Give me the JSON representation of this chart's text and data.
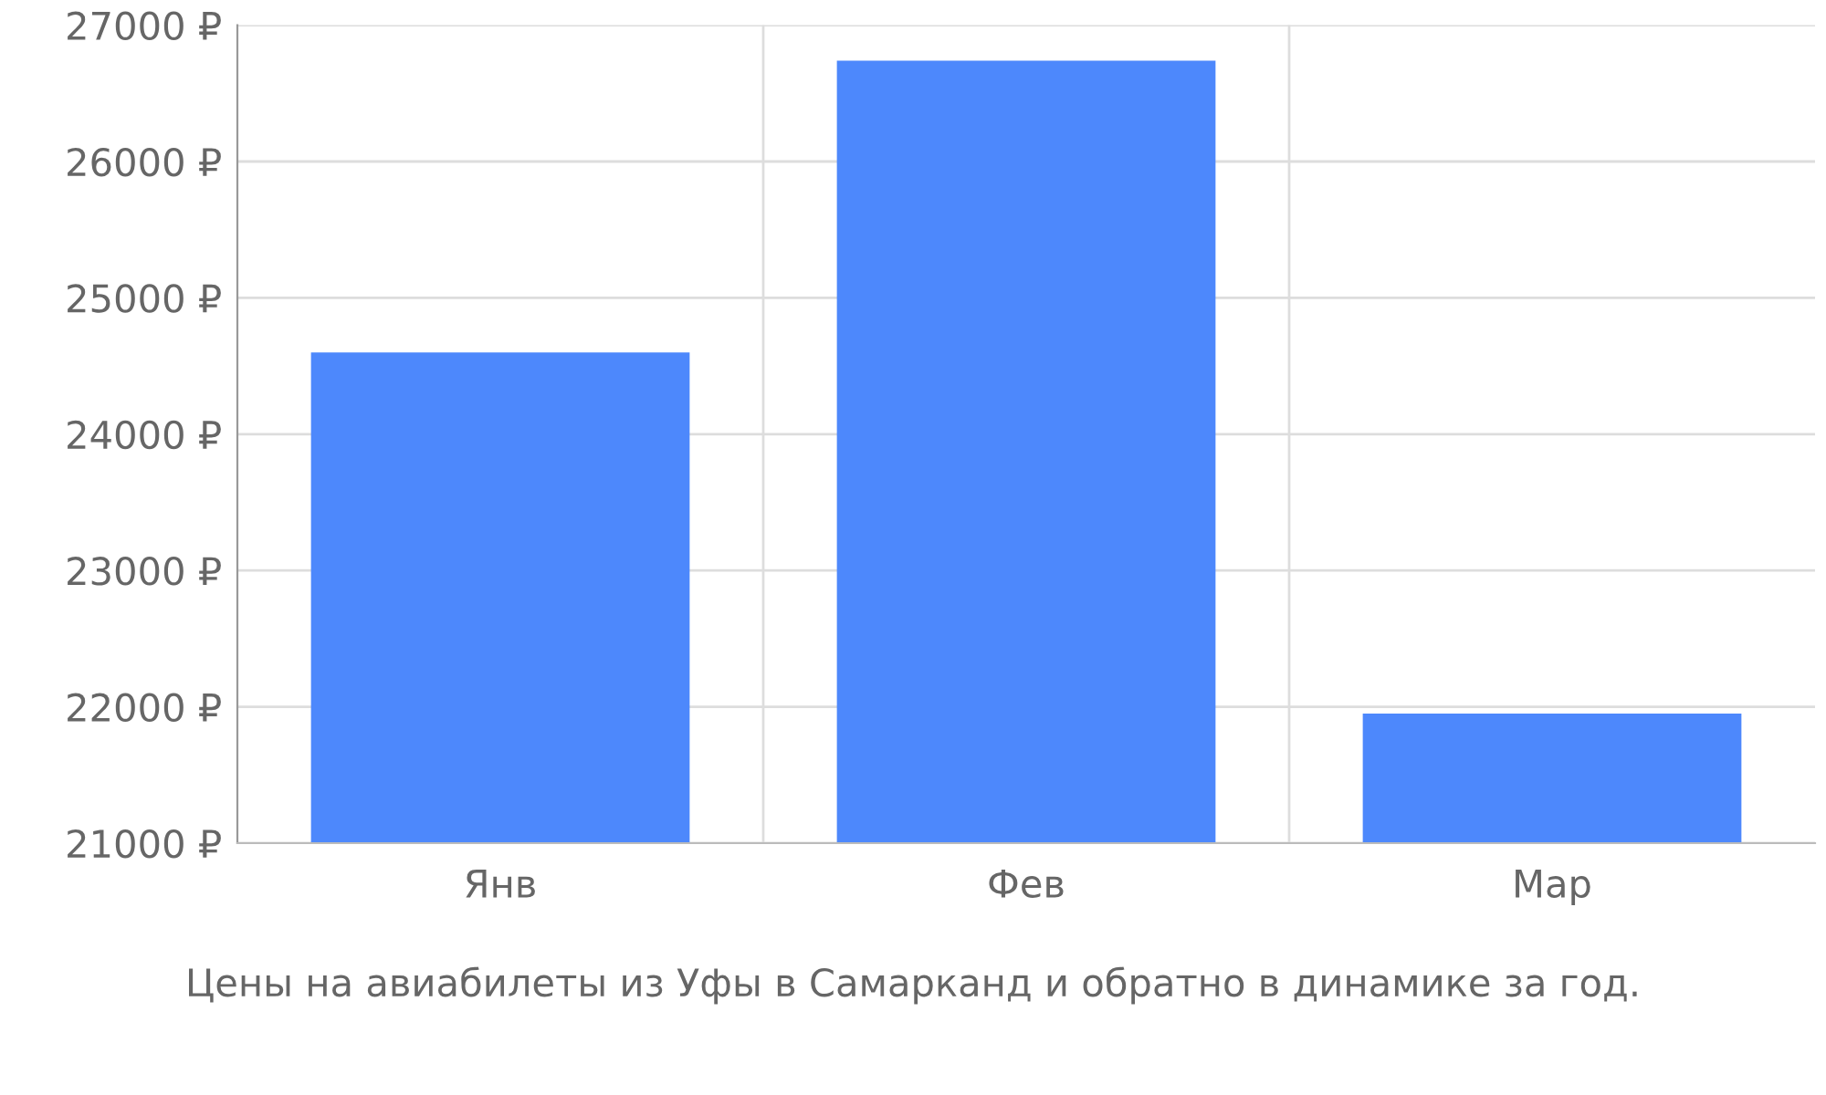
{
  "chart_data": {
    "type": "bar",
    "categories": [
      "Янв",
      "Фев",
      "Мар"
    ],
    "values": [
      24600,
      26740,
      21950
    ],
    "color": "#4d88fc",
    "ylim": [
      21000,
      27000
    ],
    "yticks": [
      {
        "value": 21000,
        "label": "21000 ₽"
      },
      {
        "value": 22000,
        "label": "22000 ₽"
      },
      {
        "value": 23000,
        "label": "23000 ₽"
      },
      {
        "value": 24000,
        "label": "24000 ₽"
      },
      {
        "value": 25000,
        "label": "25000 ₽"
      },
      {
        "value": 26000,
        "label": "26000 ₽"
      },
      {
        "value": 27000,
        "label": "27000 ₽"
      }
    ],
    "grid": true,
    "annotations": [
      "Цены на авиабилеты из Уфы в Самарканд и обратно в динамике за год."
    ]
  }
}
